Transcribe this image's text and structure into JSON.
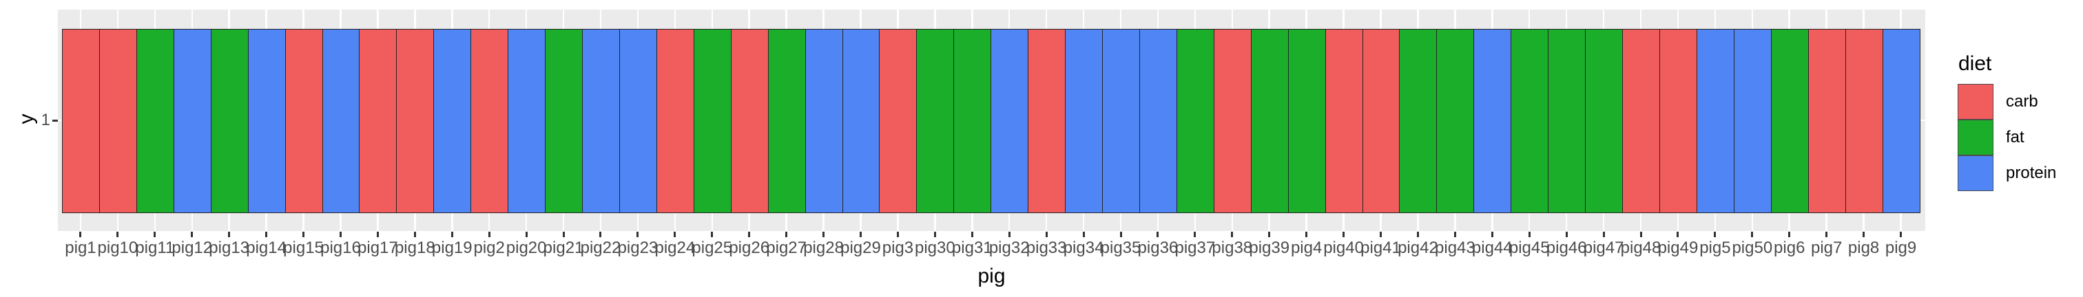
{
  "figure": {
    "background": "#FFFFFF",
    "panel_background": "#EBEBEB",
    "gridline_color": "#FFFFFF",
    "tick_color": "#333333",
    "axis_text_color": "#4D4D4D",
    "bar_border_color": "#252525"
  },
  "chart_data": {
    "type": "bar",
    "title": "",
    "xlabel": "pig",
    "ylabel": "y",
    "y_tick_labels": [
      "1"
    ],
    "grid": "major gridlines on, white on gray panel",
    "layout": "50 unit-height tiles centered on y=1, x categories in alphabetical order, legend at right",
    "colors": {
      "carb": "#F15C5C",
      "fat": "#1BAE2B",
      "protein": "#5085F6"
    },
    "legend": {
      "title": "diet",
      "position": "right",
      "entries": [
        {
          "label": "carb",
          "color": "#F15C5C"
        },
        {
          "label": "fat",
          "color": "#1BAE2B"
        },
        {
          "label": "protein",
          "color": "#5085F6"
        }
      ]
    },
    "bars": [
      {
        "pig": "pig1",
        "y": 1,
        "diet": "carb"
      },
      {
        "pig": "pig10",
        "y": 1,
        "diet": "carb"
      },
      {
        "pig": "pig11",
        "y": 1,
        "diet": "fat"
      },
      {
        "pig": "pig12",
        "y": 1,
        "diet": "protein"
      },
      {
        "pig": "pig13",
        "y": 1,
        "diet": "fat"
      },
      {
        "pig": "pig14",
        "y": 1,
        "diet": "protein"
      },
      {
        "pig": "pig15",
        "y": 1,
        "diet": "carb"
      },
      {
        "pig": "pig16",
        "y": 1,
        "diet": "protein"
      },
      {
        "pig": "pig17",
        "y": 1,
        "diet": "carb"
      },
      {
        "pig": "pig18",
        "y": 1,
        "diet": "carb"
      },
      {
        "pig": "pig19",
        "y": 1,
        "diet": "protein"
      },
      {
        "pig": "pig2",
        "y": 1,
        "diet": "carb"
      },
      {
        "pig": "pig20",
        "y": 1,
        "diet": "protein"
      },
      {
        "pig": "pig21",
        "y": 1,
        "diet": "fat"
      },
      {
        "pig": "pig22",
        "y": 1,
        "diet": "protein"
      },
      {
        "pig": "pig23",
        "y": 1,
        "diet": "protein"
      },
      {
        "pig": "pig24",
        "y": 1,
        "diet": "carb"
      },
      {
        "pig": "pig25",
        "y": 1,
        "diet": "fat"
      },
      {
        "pig": "pig26",
        "y": 1,
        "diet": "carb"
      },
      {
        "pig": "pig27",
        "y": 1,
        "diet": "fat"
      },
      {
        "pig": "pig28",
        "y": 1,
        "diet": "protein"
      },
      {
        "pig": "pig29",
        "y": 1,
        "diet": "protein"
      },
      {
        "pig": "pig3",
        "y": 1,
        "diet": "carb"
      },
      {
        "pig": "pig30",
        "y": 1,
        "diet": "fat"
      },
      {
        "pig": "pig31",
        "y": 1,
        "diet": "fat"
      },
      {
        "pig": "pig32",
        "y": 1,
        "diet": "protein"
      },
      {
        "pig": "pig33",
        "y": 1,
        "diet": "carb"
      },
      {
        "pig": "pig34",
        "y": 1,
        "diet": "protein"
      },
      {
        "pig": "pig35",
        "y": 1,
        "diet": "protein"
      },
      {
        "pig": "pig36",
        "y": 1,
        "diet": "protein"
      },
      {
        "pig": "pig37",
        "y": 1,
        "diet": "fat"
      },
      {
        "pig": "pig38",
        "y": 1,
        "diet": "carb"
      },
      {
        "pig": "pig39",
        "y": 1,
        "diet": "fat"
      },
      {
        "pig": "pig4",
        "y": 1,
        "diet": "fat"
      },
      {
        "pig": "pig40",
        "y": 1,
        "diet": "carb"
      },
      {
        "pig": "pig41",
        "y": 1,
        "diet": "carb"
      },
      {
        "pig": "pig42",
        "y": 1,
        "diet": "fat"
      },
      {
        "pig": "pig43",
        "y": 1,
        "diet": "fat"
      },
      {
        "pig": "pig44",
        "y": 1,
        "diet": "protein"
      },
      {
        "pig": "pig45",
        "y": 1,
        "diet": "fat"
      },
      {
        "pig": "pig46",
        "y": 1,
        "diet": "fat"
      },
      {
        "pig": "pig47",
        "y": 1,
        "diet": "fat"
      },
      {
        "pig": "pig48",
        "y": 1,
        "diet": "carb"
      },
      {
        "pig": "pig49",
        "y": 1,
        "diet": "carb"
      },
      {
        "pig": "pig5",
        "y": 1,
        "diet": "protein"
      },
      {
        "pig": "pig50",
        "y": 1,
        "diet": "protein"
      },
      {
        "pig": "pig6",
        "y": 1,
        "diet": "fat"
      },
      {
        "pig": "pig7",
        "y": 1,
        "diet": "carb"
      },
      {
        "pig": "pig8",
        "y": 1,
        "diet": "carb"
      },
      {
        "pig": "pig9",
        "y": 1,
        "diet": "protein"
      }
    ]
  }
}
